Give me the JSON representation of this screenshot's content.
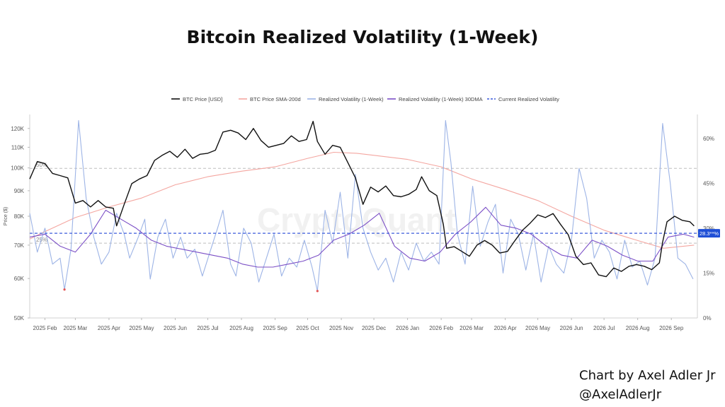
{
  "page": {
    "credit_line1": "Chart by Axel Adler Jr",
    "credit_line2": "@AxelAdlerJr"
  },
  "chart_data": {
    "type": "line",
    "title": "Bitcoin Realized Volatility (1-Week)",
    "watermark": "CryptoQuant",
    "ylabel_left": "Price ($)",
    "y_left_scale": "log",
    "y_left_ticks": [
      50000,
      60000,
      70000,
      80000,
      90000,
      100000,
      110000,
      120000
    ],
    "y_left_tick_labels": [
      "50K",
      "60K",
      "70K",
      "80K",
      "90K",
      "100K",
      "110K",
      "120K"
    ],
    "y_left_range": [
      50000,
      128000
    ],
    "y_right_ticks": [
      0,
      15,
      30,
      45,
      60
    ],
    "y_right_tick_labels": [
      "0%",
      "15%",
      "30%",
      "45%",
      "60%"
    ],
    "y_right_range": [
      0,
      68
    ],
    "x_ticks": [
      "2025-02-01",
      "2025-03-01",
      "2025-04-01",
      "2025-05-01",
      "2025-06-01",
      "2025-07-01",
      "2025-08-01",
      "2025-09-01",
      "2025-10-01",
      "2025-11-01",
      "2025-12-01",
      "2026-01-01",
      "2026-02-01",
      "2026-03-01",
      "2026-04-01",
      "2026-05-01",
      "2026-06-01",
      "2026-07-01",
      "2026-08-01",
      "2026-09-01"
    ],
    "x_tick_labels": [
      "2025 Feb",
      "2025 Mar",
      "2025 Apr",
      "2025 May",
      "2025 Jun",
      "2025 Jul",
      "2025 Aug",
      "2025 Sep",
      "2025 Oct",
      "2025 Nov",
      "2025 Dec",
      "2026 Jan",
      "2026 Feb",
      "2026 Mar",
      "2026 Apr",
      "2026 May",
      "2026 Jun",
      "2026 Jul",
      "2026 Aug",
      "2026 Sep"
    ],
    "x_range": [
      "2025-01-18",
      "2026-09-25"
    ],
    "thresholds": [
      {
        "label": "50%",
        "value": 50
      },
      {
        "label": "25%",
        "value": 25
      }
    ],
    "current_value_label": "28.3**%",
    "current_value": 28.3,
    "legend_position": "top",
    "series": [
      {
        "name": "BTC Price [USD]",
        "color": "#111111",
        "axis": "left",
        "points": [
          [
            "2025-01-18",
            95000
          ],
          [
            "2025-01-25",
            103000
          ],
          [
            "2025-02-01",
            102000
          ],
          [
            "2025-02-08",
            97500
          ],
          [
            "2025-02-15",
            96500
          ],
          [
            "2025-02-22",
            95500
          ],
          [
            "2025-03-01",
            85000
          ],
          [
            "2025-03-08",
            86000
          ],
          [
            "2025-03-15",
            83500
          ],
          [
            "2025-03-22",
            86000
          ],
          [
            "2025-03-29",
            83500
          ],
          [
            "2025-04-05",
            83000
          ],
          [
            "2025-04-08",
            76500
          ],
          [
            "2025-04-15",
            84500
          ],
          [
            "2025-04-22",
            93000
          ],
          [
            "2025-04-29",
            95000
          ],
          [
            "2025-05-06",
            96500
          ],
          [
            "2025-05-13",
            103500
          ],
          [
            "2025-05-20",
            106000
          ],
          [
            "2025-05-27",
            108000
          ],
          [
            "2025-06-03",
            105000
          ],
          [
            "2025-06-10",
            109000
          ],
          [
            "2025-06-17",
            104500
          ],
          [
            "2025-06-24",
            106500
          ],
          [
            "2025-07-01",
            107000
          ],
          [
            "2025-07-08",
            108500
          ],
          [
            "2025-07-15",
            118000
          ],
          [
            "2025-07-22",
            119000
          ],
          [
            "2025-07-29",
            117500
          ],
          [
            "2025-08-05",
            114000
          ],
          [
            "2025-08-12",
            120000
          ],
          [
            "2025-08-19",
            113500
          ],
          [
            "2025-08-26",
            110000
          ],
          [
            "2025-09-02",
            111000
          ],
          [
            "2025-09-09",
            112000
          ],
          [
            "2025-09-16",
            116000
          ],
          [
            "2025-09-23",
            113000
          ],
          [
            "2025-09-30",
            114000
          ],
          [
            "2025-10-06",
            124000
          ],
          [
            "2025-10-10",
            113000
          ],
          [
            "2025-10-17",
            106500
          ],
          [
            "2025-10-24",
            111000
          ],
          [
            "2025-10-31",
            110000
          ],
          [
            "2025-11-07",
            102500
          ],
          [
            "2025-11-14",
            95500
          ],
          [
            "2025-11-21",
            84500
          ],
          [
            "2025-11-28",
            91500
          ],
          [
            "2025-12-05",
            89500
          ],
          [
            "2025-12-12",
            92000
          ],
          [
            "2025-12-19",
            88000
          ],
          [
            "2025-12-26",
            87500
          ],
          [
            "2026-01-02",
            88500
          ],
          [
            "2026-01-09",
            90500
          ],
          [
            "2026-01-14",
            96000
          ],
          [
            "2026-01-21",
            90000
          ],
          [
            "2026-01-28",
            88000
          ],
          [
            "2026-02-03",
            77000
          ],
          [
            "2026-02-06",
            69000
          ],
          [
            "2026-02-13",
            69500
          ],
          [
            "2026-02-20",
            68000
          ],
          [
            "2026-02-27",
            66500
          ],
          [
            "2026-03-06",
            70000
          ],
          [
            "2026-03-13",
            71500
          ],
          [
            "2026-03-20",
            70000
          ],
          [
            "2026-03-27",
            67500
          ],
          [
            "2026-04-03",
            68000
          ],
          [
            "2026-04-10",
            71500
          ],
          [
            "2026-04-17",
            75000
          ],
          [
            "2026-04-24",
            77500
          ],
          [
            "2026-05-01",
            80500
          ],
          [
            "2026-05-08",
            79500
          ],
          [
            "2026-05-15",
            81000
          ],
          [
            "2026-05-22",
            77000
          ],
          [
            "2026-05-29",
            73500
          ],
          [
            "2026-06-05",
            66500
          ],
          [
            "2026-06-12",
            64000
          ],
          [
            "2026-06-19",
            64500
          ],
          [
            "2026-06-26",
            61000
          ],
          [
            "2026-07-03",
            60500
          ],
          [
            "2026-07-10",
            63000
          ],
          [
            "2026-07-17",
            62000
          ],
          [
            "2026-07-24",
            63500
          ],
          [
            "2026-07-31",
            64000
          ],
          [
            "2026-08-07",
            63500
          ],
          [
            "2026-08-14",
            62500
          ],
          [
            "2026-08-21",
            64500
          ],
          [
            "2026-08-24",
            71000
          ],
          [
            "2026-08-28",
            78000
          ],
          [
            "2026-09-04",
            80000
          ],
          [
            "2026-09-11",
            78500
          ],
          [
            "2026-09-18",
            78000
          ],
          [
            "2026-09-22",
            76500
          ]
        ]
      },
      {
        "name": "BTC Price SMA-200d",
        "color": "#f4a6a0",
        "axis": "left",
        "points": [
          [
            "2025-01-18",
            72000
          ],
          [
            "2025-02-01",
            74500
          ],
          [
            "2025-03-01",
            79500
          ],
          [
            "2025-04-01",
            83500
          ],
          [
            "2025-05-01",
            87000
          ],
          [
            "2025-06-01",
            92500
          ],
          [
            "2025-07-01",
            96000
          ],
          [
            "2025-08-01",
            98500
          ],
          [
            "2025-09-01",
            100500
          ],
          [
            "2025-10-01",
            104500
          ],
          [
            "2025-10-25",
            107500
          ],
          [
            "2025-11-15",
            107000
          ],
          [
            "2025-12-01",
            106000
          ],
          [
            "2026-01-01",
            104000
          ],
          [
            "2026-02-01",
            100500
          ],
          [
            "2026-03-01",
            95000
          ],
          [
            "2026-04-01",
            90500
          ],
          [
            "2026-05-01",
            86000
          ],
          [
            "2026-06-01",
            80000
          ],
          [
            "2026-07-01",
            75000
          ],
          [
            "2026-08-01",
            71500
          ],
          [
            "2026-08-25",
            69000
          ],
          [
            "2026-09-22",
            70000
          ]
        ]
      },
      {
        "name": "Realized Volatility (1-Week)",
        "color": "#9db4e6",
        "axis": "right",
        "points": [
          [
            "2025-01-18",
            35
          ],
          [
            "2025-01-25",
            22
          ],
          [
            "2025-02-01",
            30
          ],
          [
            "2025-02-08",
            18
          ],
          [
            "2025-02-15",
            20
          ],
          [
            "2025-02-19",
            9.5
          ],
          [
            "2025-02-25",
            23
          ],
          [
            "2025-03-04",
            66
          ],
          [
            "2025-03-11",
            40
          ],
          [
            "2025-03-18",
            27
          ],
          [
            "2025-03-25",
            18
          ],
          [
            "2025-04-01",
            22
          ],
          [
            "2025-04-08",
            35
          ],
          [
            "2025-04-15",
            28
          ],
          [
            "2025-04-20",
            20
          ],
          [
            "2025-04-28",
            27
          ],
          [
            "2025-05-04",
            33
          ],
          [
            "2025-05-09",
            13
          ],
          [
            "2025-05-16",
            27
          ],
          [
            "2025-05-23",
            33
          ],
          [
            "2025-05-30",
            20
          ],
          [
            "2025-06-06",
            27
          ],
          [
            "2025-06-12",
            20
          ],
          [
            "2025-06-19",
            23
          ],
          [
            "2025-06-26",
            14
          ],
          [
            "2025-07-03",
            22
          ],
          [
            "2025-07-10",
            30
          ],
          [
            "2025-07-15",
            36
          ],
          [
            "2025-07-22",
            18
          ],
          [
            "2025-07-27",
            14
          ],
          [
            "2025-08-03",
            30
          ],
          [
            "2025-08-10",
            25
          ],
          [
            "2025-08-17",
            12
          ],
          [
            "2025-08-24",
            20
          ],
          [
            "2025-08-31",
            28
          ],
          [
            "2025-09-07",
            14
          ],
          [
            "2025-09-14",
            20
          ],
          [
            "2025-09-21",
            17
          ],
          [
            "2025-09-28",
            26
          ],
          [
            "2025-10-05",
            17
          ],
          [
            "2025-10-10",
            9
          ],
          [
            "2025-10-17",
            36
          ],
          [
            "2025-10-24",
            25
          ],
          [
            "2025-10-31",
            42
          ],
          [
            "2025-11-07",
            20
          ],
          [
            "2025-11-14",
            48
          ],
          [
            "2025-11-21",
            30
          ],
          [
            "2025-11-28",
            22
          ],
          [
            "2025-12-05",
            16
          ],
          [
            "2025-12-12",
            20
          ],
          [
            "2025-12-19",
            12
          ],
          [
            "2025-12-26",
            22
          ],
          [
            "2026-01-02",
            16
          ],
          [
            "2026-01-09",
            25
          ],
          [
            "2026-01-16",
            19
          ],
          [
            "2026-01-23",
            22
          ],
          [
            "2026-01-30",
            18
          ],
          [
            "2026-02-05",
            66
          ],
          [
            "2026-02-10",
            52
          ],
          [
            "2026-02-16",
            28
          ],
          [
            "2026-02-23",
            18
          ],
          [
            "2026-03-02",
            44
          ],
          [
            "2026-03-09",
            24
          ],
          [
            "2026-03-16",
            32
          ],
          [
            "2026-03-23",
            38
          ],
          [
            "2026-03-30",
            15
          ],
          [
            "2026-04-06",
            33
          ],
          [
            "2026-04-13",
            28
          ],
          [
            "2026-04-20",
            16
          ],
          [
            "2026-04-27",
            28
          ],
          [
            "2026-05-04",
            12
          ],
          [
            "2026-05-11",
            24
          ],
          [
            "2026-05-18",
            18
          ],
          [
            "2026-05-25",
            15
          ],
          [
            "2026-06-01",
            26
          ],
          [
            "2026-06-08",
            50
          ],
          [
            "2026-06-15",
            40
          ],
          [
            "2026-06-22",
            20
          ],
          [
            "2026-06-29",
            26
          ],
          [
            "2026-07-06",
            22
          ],
          [
            "2026-07-13",
            13
          ],
          [
            "2026-07-20",
            26
          ],
          [
            "2026-07-27",
            17
          ],
          [
            "2026-08-03",
            19
          ],
          [
            "2026-08-10",
            11
          ],
          [
            "2026-08-17",
            20
          ],
          [
            "2026-08-24",
            65
          ],
          [
            "2026-08-31",
            45
          ],
          [
            "2026-09-07",
            20
          ],
          [
            "2026-09-14",
            18
          ],
          [
            "2026-09-21",
            13
          ]
        ]
      },
      {
        "name": "Realized Volatility (1-Week) 30DMA",
        "color": "#7b4fc6",
        "axis": "right",
        "points": [
          [
            "2025-01-18",
            27
          ],
          [
            "2025-02-01",
            28
          ],
          [
            "2025-02-15",
            24
          ],
          [
            "2025-03-01",
            22
          ],
          [
            "2025-03-15",
            28
          ],
          [
            "2025-03-29",
            36
          ],
          [
            "2025-04-12",
            33
          ],
          [
            "2025-04-26",
            30
          ],
          [
            "2025-05-10",
            26
          ],
          [
            "2025-05-24",
            24
          ],
          [
            "2025-06-07",
            23
          ],
          [
            "2025-06-21",
            22
          ],
          [
            "2025-07-05",
            21
          ],
          [
            "2025-07-19",
            20
          ],
          [
            "2025-08-02",
            18
          ],
          [
            "2025-08-16",
            17
          ],
          [
            "2025-08-30",
            17
          ],
          [
            "2025-09-13",
            18
          ],
          [
            "2025-09-27",
            19
          ],
          [
            "2025-10-11",
            21
          ],
          [
            "2025-10-25",
            26
          ],
          [
            "2025-11-08",
            28
          ],
          [
            "2025-11-22",
            31
          ],
          [
            "2025-12-06",
            35
          ],
          [
            "2025-12-20",
            24
          ],
          [
            "2026-01-03",
            20
          ],
          [
            "2026-01-17",
            19
          ],
          [
            "2026-01-31",
            22
          ],
          [
            "2026-02-14",
            28
          ],
          [
            "2026-02-28",
            32
          ],
          [
            "2026-03-14",
            37
          ],
          [
            "2026-03-28",
            31
          ],
          [
            "2026-04-11",
            30
          ],
          [
            "2026-04-25",
            28
          ],
          [
            "2026-05-09",
            24
          ],
          [
            "2026-05-23",
            21
          ],
          [
            "2026-06-06",
            20
          ],
          [
            "2026-06-20",
            26
          ],
          [
            "2026-07-04",
            24
          ],
          [
            "2026-07-18",
            21
          ],
          [
            "2026-08-01",
            19
          ],
          [
            "2026-08-15",
            19
          ],
          [
            "2026-08-29",
            27
          ],
          [
            "2026-09-12",
            28
          ],
          [
            "2026-09-22",
            27
          ]
        ]
      },
      {
        "name": "Current Realized Volatility",
        "color": "#3b5bdb",
        "axis": "right",
        "dashed": true,
        "points": [
          [
            "2025-01-18",
            28.3
          ],
          [
            "2026-09-25",
            28.3
          ]
        ]
      }
    ]
  }
}
